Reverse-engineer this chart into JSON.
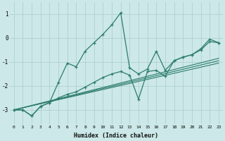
{
  "xlabel": "Humidex (Indice chaleur)",
  "bg_color": "#cce8e8",
  "line_color": "#2d7d6b",
  "grid_color": "#aacccc",
  "xlim": [
    -0.5,
    23.5
  ],
  "ylim": [
    -3.6,
    1.5
  ],
  "yticks": [
    -3,
    -2,
    -1,
    0,
    1
  ],
  "xticks": [
    0,
    1,
    2,
    3,
    4,
    5,
    6,
    7,
    8,
    9,
    10,
    11,
    12,
    13,
    14,
    15,
    16,
    17,
    18,
    19,
    20,
    21,
    22,
    23
  ],
  "series1_x": [
    0,
    1,
    2,
    3,
    4,
    5,
    6,
    7,
    8,
    9,
    10,
    11,
    12,
    13,
    14,
    15,
    16,
    17,
    18,
    19,
    20,
    21,
    22,
    23
  ],
  "series1_y": [
    -3.0,
    -3.0,
    -3.25,
    -2.85,
    -2.7,
    -1.85,
    -1.05,
    -1.2,
    -0.55,
    -0.2,
    0.15,
    0.55,
    1.05,
    -1.25,
    -1.5,
    -1.3,
    -0.55,
    -1.35,
    -0.95,
    -0.8,
    -0.7,
    -0.45,
    -0.05,
    -0.2
  ],
  "series2_x": [
    0,
    1,
    2,
    3,
    4,
    5,
    6,
    7,
    8,
    9,
    10,
    11,
    12,
    13,
    14,
    15,
    16,
    17,
    18,
    19,
    20,
    21,
    22,
    23
  ],
  "series2_y": [
    -3.0,
    -3.0,
    -3.25,
    -2.85,
    -2.7,
    -2.5,
    -2.35,
    -2.25,
    -2.05,
    -1.85,
    -1.65,
    -1.5,
    -1.4,
    -1.55,
    -2.55,
    -1.4,
    -1.35,
    -1.6,
    -0.95,
    -0.8,
    -0.7,
    -0.5,
    -0.15,
    -0.2
  ],
  "line3_x": [
    0,
    23
  ],
  "line3_y": [
    -3.0,
    -1.05
  ],
  "line4_x": [
    0,
    23
  ],
  "line4_y": [
    -3.0,
    -0.95
  ],
  "line5_x": [
    0,
    23
  ],
  "line5_y": [
    -3.0,
    -0.85
  ]
}
